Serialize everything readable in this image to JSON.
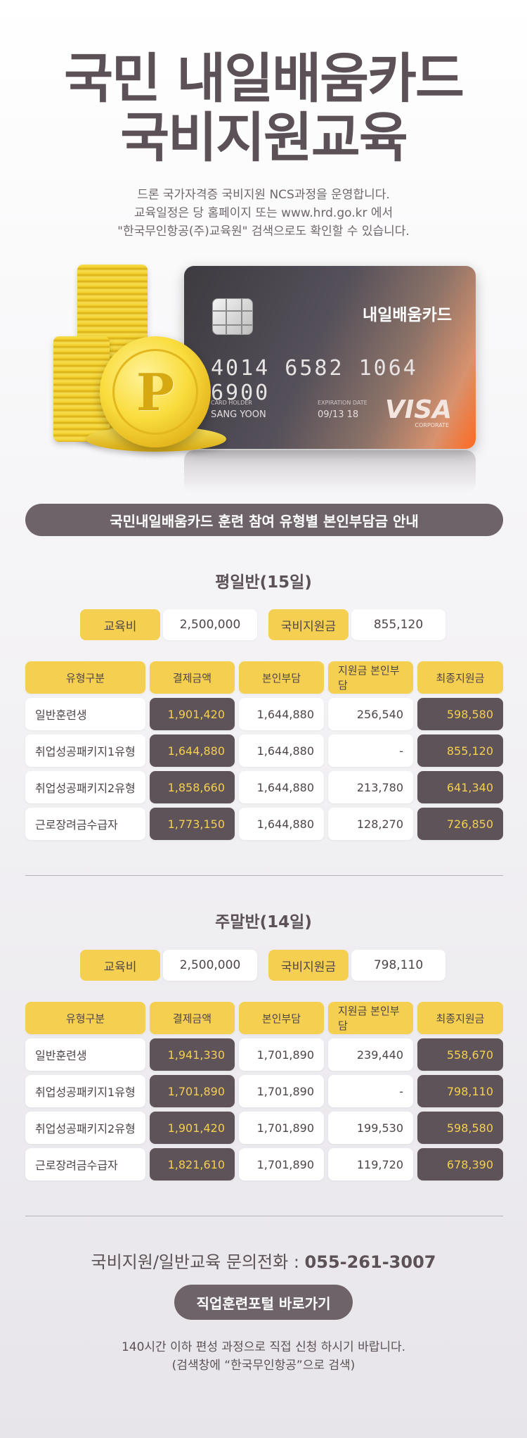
{
  "hero": {
    "title_line1": "국민 내일배움카드",
    "title_line2": "국비지원교육",
    "desc_line1": "드론 국가자격증 국비지원 NCS과정을 운영합니다.",
    "desc_line2": "교육일정은 당 홈페이지 또는 www.hrd.go.kr 에서",
    "desc_line3": "\"한국무인항공(주)교육원\" 검색으로도 확인할 수 있습니다."
  },
  "card": {
    "brand": "내일배움카드",
    "number": "4014 6582 1064 6900",
    "holder_label": "CARD HOLDER",
    "holder": "SANG YOON",
    "exp_label": "EXPIRATION DATE",
    "exp": "09/13 18",
    "network": "VISA",
    "network_sub": "CORPORATE",
    "coin_letter": "P"
  },
  "banner": "국민내일배움카드 훈련 참여 유형별 본인부담금 안내",
  "weekday": {
    "title": "평일반(15일)",
    "tuition_label": "교육비",
    "tuition": "2,500,000",
    "support_label": "국비지원금",
    "support": "855,120",
    "headers": [
      "유형구분",
      "결제금액",
      "본인부담",
      "지원금 본인부담",
      "최종지원금"
    ],
    "rows": [
      {
        "type": "일반훈련생",
        "payment": "1,901,420",
        "self": "1,644,880",
        "support_self": "256,540",
        "final": "598,580"
      },
      {
        "type": "취업성공패키지1유형",
        "payment": "1,644,880",
        "self": "1,644,880",
        "support_self": "-",
        "final": "855,120"
      },
      {
        "type": "취업성공패키지2유형",
        "payment": "1,858,660",
        "self": "1,644,880",
        "support_self": "213,780",
        "final": "641,340"
      },
      {
        "type": "근로장려금수급자",
        "payment": "1,773,150",
        "self": "1,644,880",
        "support_self": "128,270",
        "final": "726,850"
      }
    ]
  },
  "weekend": {
    "title": "주말반(14일)",
    "tuition_label": "교육비",
    "tuition": "2,500,000",
    "support_label": "국비지원금",
    "support": "798,110",
    "headers": [
      "유형구분",
      "결제금액",
      "본인부담",
      "지원금 본인부담",
      "최종지원금"
    ],
    "rows": [
      {
        "type": "일반훈련생",
        "payment": "1,941,330",
        "self": "1,701,890",
        "support_self": "239,440",
        "final": "558,670"
      },
      {
        "type": "취업성공패키지1유형",
        "payment": "1,701,890",
        "self": "1,701,890",
        "support_self": "-",
        "final": "798,110"
      },
      {
        "type": "취업성공패키지2유형",
        "payment": "1,901,420",
        "self": "1,701,890",
        "support_self": "199,530",
        "final": "598,580"
      },
      {
        "type": "근로장려금수급자",
        "payment": "1,821,610",
        "self": "1,701,890",
        "support_self": "119,720",
        "final": "678,390"
      }
    ]
  },
  "contact": {
    "label": "국비지원/일반교육 문의전화 : ",
    "phone": "055-261-3007"
  },
  "portal_button": "직업훈련포털 바로가기",
  "footnote": {
    "line1": "140시간 이하 편성 과정으로 직접 신청 하시기 바랍니다.",
    "line2": "(검색창에 “한국무인항공”으로 검색)"
  },
  "colors": {
    "accent_yellow": "#f5cf4f",
    "dark_mauve": "#5d5358",
    "banner": "#6d6368"
  }
}
